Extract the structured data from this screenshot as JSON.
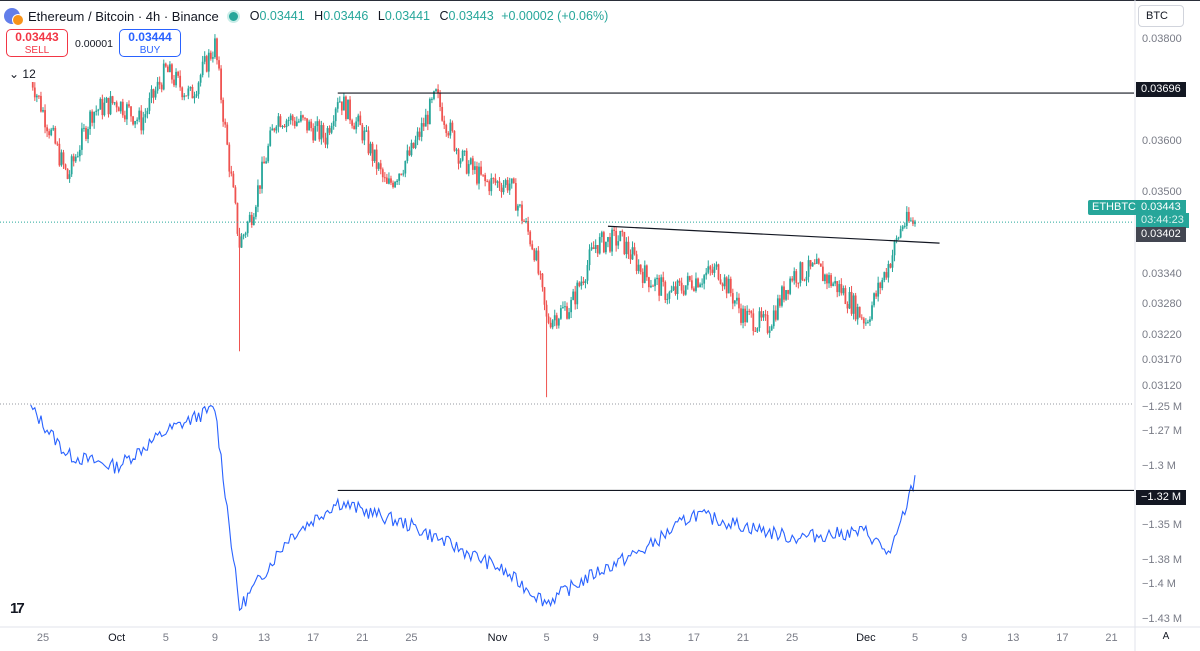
{
  "header": {
    "symbol_title": "Ethereum / Bitcoin · 4h · Binance",
    "open_label": "O",
    "open": "0.03441",
    "high_label": "H",
    "high": "0.03446",
    "low_label": "L",
    "low": "0.03441",
    "close_label": "C",
    "close": "0.03443",
    "change": "+0.00002 (+0.06%)"
  },
  "trade": {
    "sell_price": "0.03443",
    "sell_label": "SELL",
    "buy_price": "0.03444",
    "buy_label": "BUY",
    "spread": "0.00001"
  },
  "collapse_label": "12",
  "currency_button": "BTC",
  "price_axis": [
    "0.03800",
    "0.03600",
    "0.03500",
    "0.03340",
    "0.03280",
    "0.03220",
    "0.03170",
    "0.03120"
  ],
  "price_tags": {
    "resistance": "0.03696",
    "symbol": "ETHBTC",
    "last_price": "0.03443",
    "countdown": "03:44:23",
    "trend_price": "0.03402"
  },
  "indicator_axis": [
    "−1.25 M",
    "−1.27 M",
    "−1.3 M",
    "−1.35 M",
    "−1.38 M",
    "−1.4 M",
    "−1.43 M"
  ],
  "indicator_tag": "−1.32 M",
  "time_axis": [
    {
      "label": "25",
      "bold": false
    },
    {
      "label": "Oct",
      "bold": true
    },
    {
      "label": "5",
      "bold": false
    },
    {
      "label": "9",
      "bold": false
    },
    {
      "label": "13",
      "bold": false
    },
    {
      "label": "17",
      "bold": false
    },
    {
      "label": "21",
      "bold": false
    },
    {
      "label": "25",
      "bold": false
    },
    {
      "label": "Nov",
      "bold": true
    },
    {
      "label": "5",
      "bold": false
    },
    {
      "label": "9",
      "bold": false
    },
    {
      "label": "13",
      "bold": false
    },
    {
      "label": "17",
      "bold": false
    },
    {
      "label": "21",
      "bold": false
    },
    {
      "label": "25",
      "bold": false
    },
    {
      "label": "Dec",
      "bold": true
    },
    {
      "label": "5",
      "bold": false
    },
    {
      "label": "9",
      "bold": false
    },
    {
      "label": "13",
      "bold": false
    },
    {
      "label": "17",
      "bold": false
    },
    {
      "label": "21",
      "bold": false
    }
  ],
  "auto_scale_label": "A",
  "logo_text": "17",
  "colors": {
    "up": "#26a69a",
    "down": "#ef5350",
    "line": "#2962ff",
    "accent": "#131722"
  },
  "chart_data": [
    {
      "type": "candlestick",
      "title": "Ethereum / Bitcoin · 4h · Binance",
      "ylim": [
        0.031,
        0.0383
      ],
      "x_dates": [
        "Sep 25",
        "Oct 1",
        "Oct 5",
        "Oct 9",
        "Oct 13",
        "Oct 17",
        "Oct 21",
        "Oct 25",
        "Nov 1",
        "Nov 5",
        "Nov 9",
        "Nov 13",
        "Nov 17",
        "Nov 21",
        "Nov 25",
        "Dec 1",
        "Dec 5"
      ],
      "close_series": [
        {
          "date": "Sep 24",
          "close": 0.0373
        },
        {
          "date": "Sep 25",
          "close": 0.0366
        },
        {
          "date": "Sep 27",
          "close": 0.0353
        },
        {
          "date": "Sep 29",
          "close": 0.0366
        },
        {
          "date": "Oct 1",
          "close": 0.0368
        },
        {
          "date": "Oct 3",
          "close": 0.0364
        },
        {
          "date": "Oct 5",
          "close": 0.0374
        },
        {
          "date": "Oct 7",
          "close": 0.0369
        },
        {
          "date": "Oct 9",
          "close": 0.0379
        },
        {
          "date": "Oct 10",
          "close": 0.0359
        },
        {
          "date": "Oct 11",
          "close": 0.034
        },
        {
          "date": "Oct 12",
          "close": 0.0346
        },
        {
          "date": "Oct 14",
          "close": 0.0365
        },
        {
          "date": "Oct 16",
          "close": 0.0364
        },
        {
          "date": "Oct 18",
          "close": 0.0361
        },
        {
          "date": "Oct 19",
          "close": 0.0369
        },
        {
          "date": "Oct 21",
          "close": 0.0362
        },
        {
          "date": "Oct 23",
          "close": 0.0351
        },
        {
          "date": "Oct 25",
          "close": 0.0358
        },
        {
          "date": "Oct 27",
          "close": 0.0369
        },
        {
          "date": "Oct 29",
          "close": 0.0357
        },
        {
          "date": "Oct 31",
          "close": 0.0352
        },
        {
          "date": "Nov 2",
          "close": 0.0352
        },
        {
          "date": "Nov 4",
          "close": 0.0339
        },
        {
          "date": "Nov 5",
          "close": 0.0325
        },
        {
          "date": "Nov 7",
          "close": 0.0328
        },
        {
          "date": "Nov 9",
          "close": 0.034
        },
        {
          "date": "Nov 11",
          "close": 0.0341
        },
        {
          "date": "Nov 13",
          "close": 0.0334
        },
        {
          "date": "Nov 15",
          "close": 0.033
        },
        {
          "date": "Nov 17",
          "close": 0.0333
        },
        {
          "date": "Nov 19",
          "close": 0.0335
        },
        {
          "date": "Nov 21",
          "close": 0.0326
        },
        {
          "date": "Nov 23",
          "close": 0.0324
        },
        {
          "date": "Nov 25",
          "close": 0.0334
        },
        {
          "date": "Nov 27",
          "close": 0.0335
        },
        {
          "date": "Nov 29",
          "close": 0.0331
        },
        {
          "date": "Dec 1",
          "close": 0.0325
        },
        {
          "date": "Dec 3",
          "close": 0.0337
        },
        {
          "date": "Dec 4",
          "close": 0.0344
        },
        {
          "date": "Dec 5",
          "close": 0.03443
        }
      ],
      "lines": [
        {
          "name": "horizontal",
          "value": 0.03696
        },
        {
          "name": "trend",
          "from": {
            "date": "Nov 10",
            "value": 0.03435
          },
          "to": {
            "date": "Dec 7",
            "value": 0.03402
          }
        }
      ],
      "last_price": 0.03443
    },
    {
      "type": "line",
      "ylim": [
        -1.435,
        -1.245
      ],
      "x_dates": [
        "Sep 24",
        "Sep 27",
        "Oct 1",
        "Oct 5",
        "Oct 9",
        "Oct 11",
        "Oct 15",
        "Oct 19",
        "Oct 25",
        "Nov 1",
        "Nov 5",
        "Nov 9",
        "Nov 13",
        "Nov 17",
        "Nov 21",
        "Nov 25",
        "Dec 1",
        "Dec 3",
        "Dec 5"
      ],
      "values": [
        -1.25,
        -1.29,
        -1.3,
        -1.27,
        -1.25,
        -1.42,
        -1.36,
        -1.33,
        -1.35,
        -1.385,
        -1.415,
        -1.39,
        -1.37,
        -1.34,
        -1.35,
        -1.36,
        -1.355,
        -1.375,
        -1.31
      ],
      "lines": [
        {
          "name": "horizontal",
          "value": -1.32
        }
      ]
    }
  ]
}
